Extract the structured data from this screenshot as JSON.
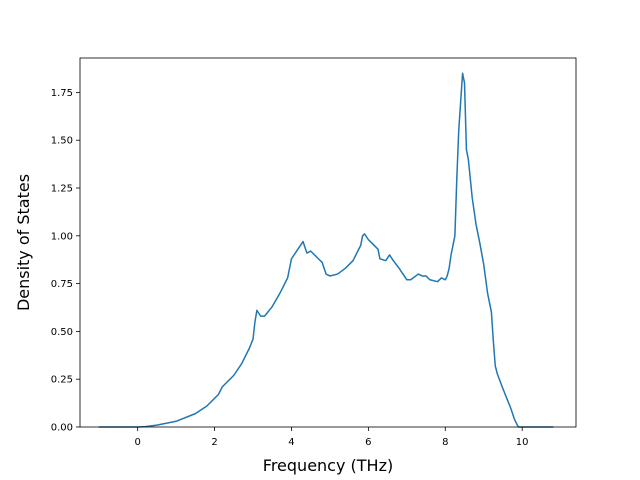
{
  "chart_data": {
    "type": "line",
    "title": "",
    "xlabel": "Frequency (THz)",
    "ylabel": "Density of States",
    "xlim": [
      -1.5,
      11.4
    ],
    "ylim": [
      0,
      1.93
    ],
    "xticks": [
      0,
      2,
      4,
      6,
      8,
      10
    ],
    "xtick_labels": [
      "0",
      "2",
      "4",
      "6",
      "8",
      "10"
    ],
    "yticks": [
      0.0,
      0.25,
      0.5,
      0.75,
      1.0,
      1.25,
      1.5,
      1.75
    ],
    "ytick_labels": [
      "0.00",
      "0.25",
      "0.50",
      "0.75",
      "1.00",
      "1.25",
      "1.50",
      "1.75"
    ],
    "grid": false,
    "line_color": "#1f77b4",
    "series": [
      {
        "x": [
          -1.0,
          -0.5,
          0.0,
          0.2,
          0.5,
          1.0,
          1.5,
          1.8,
          2.0,
          2.1,
          2.2,
          2.3,
          2.5,
          2.7,
          2.9,
          3.0,
          3.05,
          3.1,
          3.2,
          3.3,
          3.5,
          3.7,
          3.9,
          4.0,
          4.1,
          4.2,
          4.3,
          4.35,
          4.4,
          4.5,
          4.6,
          4.7,
          4.8,
          4.9,
          5.0,
          5.2,
          5.4,
          5.6,
          5.7,
          5.8,
          5.85,
          5.9,
          6.0,
          6.1,
          6.25,
          6.3,
          6.45,
          6.55,
          6.65,
          6.8,
          6.9,
          7.0,
          7.1,
          7.3,
          7.4,
          7.5,
          7.6,
          7.8,
          7.9,
          8.0,
          8.05,
          8.1,
          8.15,
          8.25,
          8.3,
          8.35,
          8.4,
          8.45,
          8.5,
          8.55,
          8.6,
          8.65,
          8.7,
          8.8,
          8.9,
          9.0,
          9.1,
          9.2,
          9.25,
          9.3,
          9.35,
          9.5,
          9.6,
          9.7,
          9.8,
          9.9,
          9.95,
          10.0,
          10.5,
          10.8
        ],
        "y": [
          0.0,
          0.0,
          0.0,
          0.002,
          0.01,
          0.03,
          0.07,
          0.11,
          0.15,
          0.17,
          0.21,
          0.23,
          0.27,
          0.33,
          0.41,
          0.46,
          0.55,
          0.61,
          0.58,
          0.58,
          0.63,
          0.7,
          0.78,
          0.88,
          0.91,
          0.94,
          0.97,
          0.94,
          0.91,
          0.92,
          0.9,
          0.88,
          0.86,
          0.8,
          0.79,
          0.8,
          0.83,
          0.87,
          0.91,
          0.95,
          1.0,
          1.01,
          0.98,
          0.96,
          0.93,
          0.88,
          0.87,
          0.9,
          0.87,
          0.83,
          0.8,
          0.77,
          0.77,
          0.8,
          0.79,
          0.79,
          0.77,
          0.76,
          0.78,
          0.77,
          0.79,
          0.83,
          0.9,
          1.0,
          1.3,
          1.55,
          1.7,
          1.85,
          1.8,
          1.45,
          1.4,
          1.3,
          1.2,
          1.06,
          0.96,
          0.85,
          0.7,
          0.6,
          0.45,
          0.32,
          0.28,
          0.2,
          0.15,
          0.1,
          0.04,
          0.0,
          0.0,
          0.0,
          0.0,
          0.0
        ]
      }
    ]
  }
}
